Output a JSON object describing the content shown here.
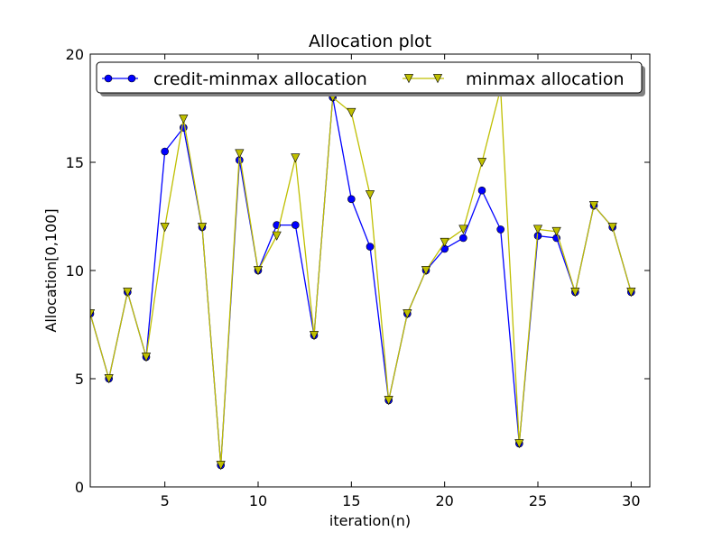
{
  "chart_data": {
    "type": "line",
    "title": "Allocation plot",
    "xlabel": "iteration(n)",
    "ylabel": "Allocation[0,100]",
    "xlim": [
      1,
      31
    ],
    "ylim": [
      0,
      20
    ],
    "xticks": [
      5,
      10,
      15,
      20,
      25,
      30
    ],
    "yticks": [
      0,
      5,
      10,
      15,
      20
    ],
    "grid": false,
    "legend_position": "top",
    "x": [
      1,
      2,
      3,
      4,
      5,
      6,
      7,
      8,
      9,
      10,
      11,
      12,
      13,
      14,
      15,
      16,
      17,
      18,
      19,
      20,
      21,
      22,
      23,
      24,
      25,
      26,
      27,
      28,
      29,
      30
    ],
    "series": [
      {
        "name": "credit-minmax allocation",
        "color": "#0000ff",
        "marker": "circle",
        "values": [
          8,
          5,
          9,
          6,
          15.5,
          16.6,
          12,
          1,
          15.1,
          10,
          12.1,
          12.1,
          7,
          18,
          13.3,
          11.1,
          4,
          8,
          10,
          11,
          11.5,
          13.7,
          11.9,
          2,
          11.6,
          11.5,
          9,
          13,
          12,
          9
        ]
      },
      {
        "name": "minmax allocation",
        "color": "#bfbf00",
        "marker": "triangle-down",
        "values": [
          8,
          5,
          9,
          6,
          12,
          17,
          12,
          1,
          15.4,
          10,
          11.6,
          15.2,
          7,
          18,
          17.3,
          13.5,
          4,
          8,
          10,
          11.3,
          11.9,
          15,
          18.4,
          2,
          11.9,
          11.8,
          9,
          13,
          12,
          9
        ]
      }
    ]
  }
}
